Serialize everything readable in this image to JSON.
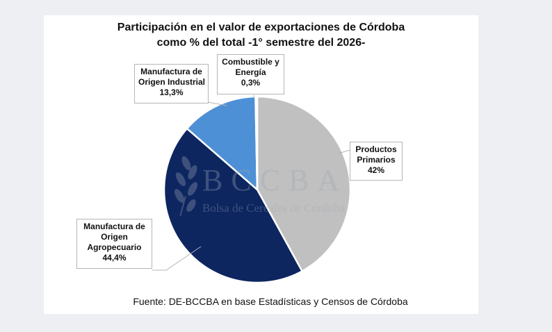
{
  "chart_data": {
    "type": "pie",
    "title_lines": [
      "Participación en el valor de exportaciones de Córdoba",
      "como % del total -1° semestre del 2026-"
    ],
    "slices": [
      {
        "label_lines": [
          "Productos",
          "Primarios"
        ],
        "value_label": "42%",
        "value": 42.0,
        "color": "#c0c0c0"
      },
      {
        "label_lines": [
          "Manufactura de",
          "Origen",
          "Agropecuario"
        ],
        "value_label": "44,4%",
        "value": 44.4,
        "color": "#0d2660"
      },
      {
        "label_lines": [
          "Manufactura de",
          "Origen Industrial"
        ],
        "value_label": "13,3%",
        "value": 13.3,
        "color": "#4e90d6"
      },
      {
        "label_lines": [
          "Combustible y",
          "Energía"
        ],
        "value_label": "0,3%",
        "value": 0.3,
        "color": "#a8c8ec"
      }
    ],
    "source": "Fuente: DE-BCCBA en base Estadísticas y Censos de Córdoba",
    "watermark": {
      "main": "BCCBA",
      "sub": "Bolsa de Cereales de Córdoba"
    }
  }
}
